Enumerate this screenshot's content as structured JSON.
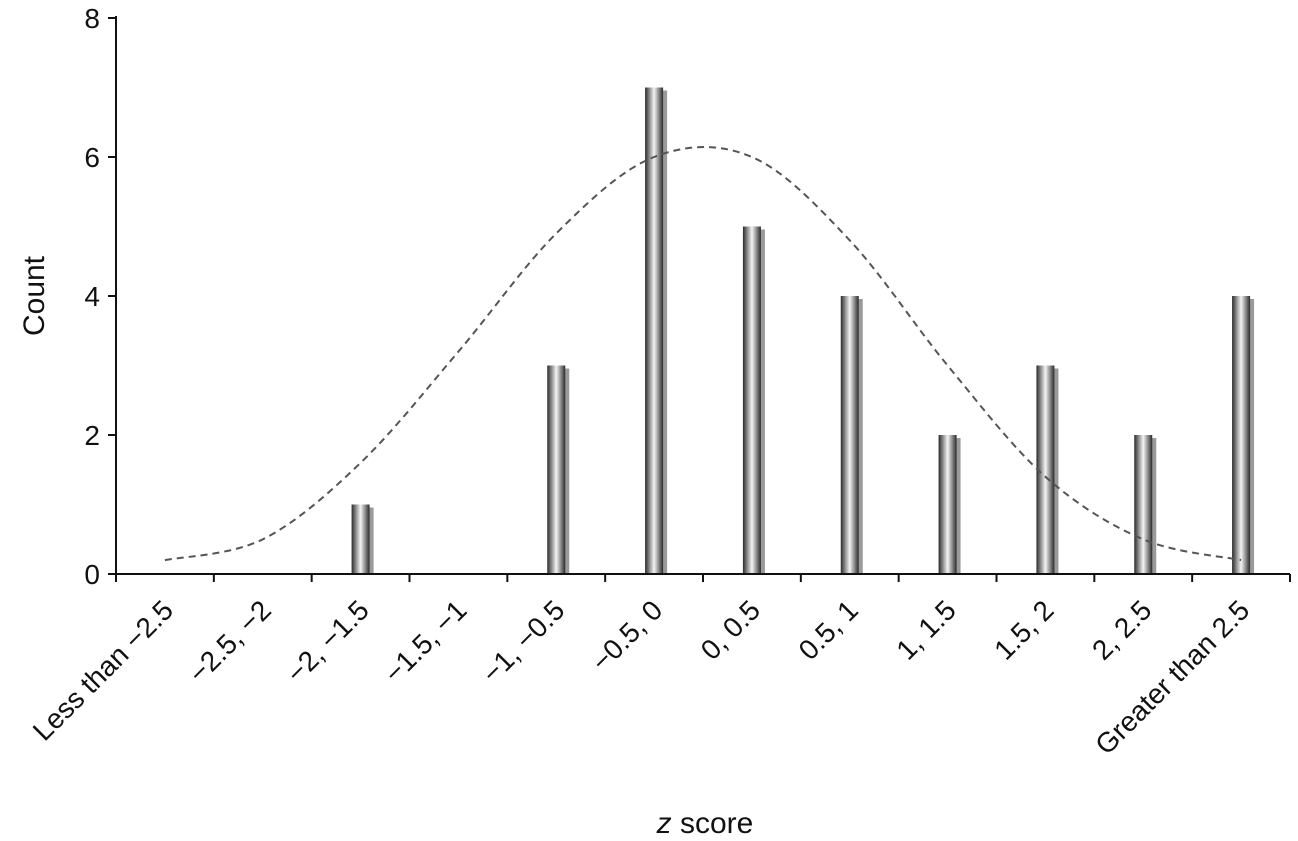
{
  "chart_data": {
    "type": "bar",
    "title": "",
    "xlabel": "z score",
    "xlabel_var": "z",
    "xlabel_rest": " score",
    "ylabel": "Count",
    "ylim": [
      0,
      8
    ],
    "yticks": [
      0,
      2,
      4,
      6,
      8
    ],
    "grid": false,
    "legend": "none",
    "categories": [
      "Less than −2.5",
      "−2.5, −2",
      "−2, −1.5",
      "−1.5, −1",
      "−1, −0.5",
      "−0.5, 0",
      "0, 0.5",
      "0.5, 1",
      "1, 1.5",
      "1.5, 2",
      "2, 2.5",
      "Greater than 2.5"
    ],
    "values": [
      0,
      0,
      1,
      0,
      3,
      7,
      5,
      4,
      2,
      3,
      2,
      4
    ],
    "curve": {
      "style": "dashed",
      "values": [
        0.2,
        0.5,
        1.6,
        3.2,
        4.9,
        6.0,
        6.0,
        4.8,
        3.0,
        1.4,
        0.5,
        0.2
      ]
    },
    "colors": {
      "bar_dark": "#2a2a2a",
      "bar_light": "#f4f4f4",
      "curve": "#555555",
      "axis": "#111111"
    }
  }
}
